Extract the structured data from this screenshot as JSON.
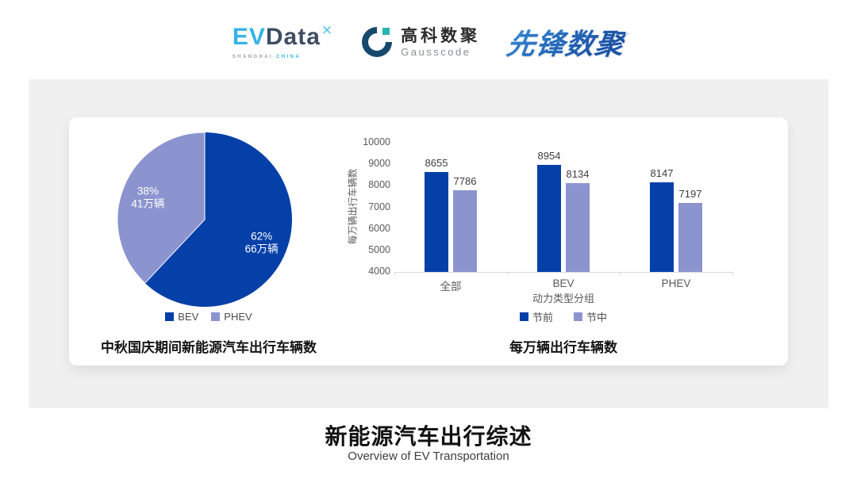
{
  "header": {
    "evdata": {
      "ev": "EV",
      "data": "Data",
      "mark": "✕",
      "sub_left": "SHANGHAI",
      "sub_right": "CHINA"
    },
    "gausscode": {
      "name_cn": "高科数聚",
      "name_en": "Gausscode"
    },
    "pioneer": {
      "text": "先锋数聚"
    }
  },
  "colors": {
    "primary_blue": "#0540a8",
    "secondary_purple": "#8b94cf",
    "panel_bg": "#f0f0f0",
    "card_bg": "#ffffff",
    "axis_gray": "#d9d9d9",
    "evdata_blue": "#35b3e7",
    "evdata_dark": "#3f4d63",
    "gauss_dark": "#17486e",
    "gauss_teal": "#27b5b0",
    "pioneer_blue": "#2a7cd0"
  },
  "chart_data": [
    {
      "type": "pie",
      "title": "中秋国庆期间新能源汽车出行车辆数",
      "legend_position": "bottom",
      "slices": [
        {
          "name": "BEV",
          "pct": 62,
          "amount": "66万辆",
          "color": "#0540a8"
        },
        {
          "name": "PHEV",
          "pct": 38,
          "amount": "41万辆",
          "color": "#8b94cf"
        }
      ]
    },
    {
      "type": "bar",
      "title": "每万辆出行车辆数",
      "categories": [
        "全部",
        "BEV",
        "PHEV"
      ],
      "series": [
        {
          "name": "节前",
          "color": "#0540a8",
          "values": [
            8655,
            8954,
            8147
          ]
        },
        {
          "name": "节中",
          "color": "#8b94cf",
          "values": [
            7786,
            8134,
            7197
          ]
        }
      ],
      "ylabel": "每万辆出行车辆数",
      "xlabel": "动力类型分组",
      "ylim": [
        4000,
        10000
      ],
      "ytick_step": 1000,
      "grid": false,
      "legend_position": "bottom"
    }
  ],
  "footer": {
    "title": "新能源汽车出行综述",
    "subtitle": "Overview of EV Transportation"
  }
}
